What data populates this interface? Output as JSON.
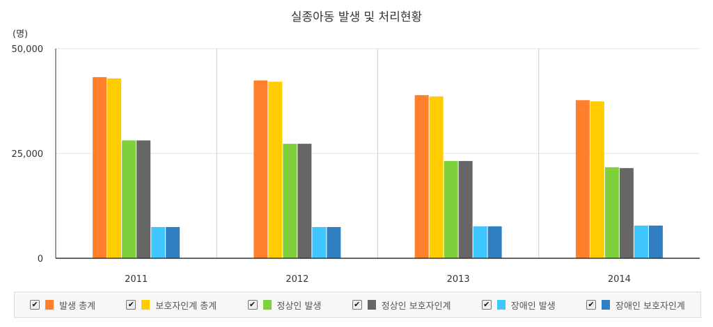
{
  "chart_data": {
    "type": "bar",
    "title": "실종아동 발생 및 처리현황",
    "ylabel": "(명)",
    "xlabel": "",
    "ylim": [
      0,
      50000
    ],
    "yticks": [
      "0",
      "25,000",
      "50,000"
    ],
    "ytick_values": [
      0,
      25000,
      50000
    ],
    "categories": [
      "2011",
      "2012",
      "2013",
      "2014"
    ],
    "legend_position": "bottom",
    "series": [
      {
        "name": "발생 총계",
        "color": "#ff7f2a",
        "values": [
          43200,
          42400,
          38900,
          37700
        ]
      },
      {
        "name": "보호자인계 총계",
        "color": "#ffcc00",
        "values": [
          42900,
          42100,
          38600,
          37400
        ]
      },
      {
        "name": "정상인 발생",
        "color": "#7ed13a",
        "values": [
          28100,
          27300,
          23200,
          21700
        ]
      },
      {
        "name": "정상인 보호자인계",
        "color": "#666666",
        "values": [
          28100,
          27300,
          23200,
          21500
        ]
      },
      {
        "name": "장애인 발생",
        "color": "#3fc6ff",
        "values": [
          7450,
          7450,
          7600,
          7800
        ]
      },
      {
        "name": "장애인 보호자인계",
        "color": "#2f7fc1",
        "values": [
          7450,
          7450,
          7600,
          7800
        ]
      }
    ]
  }
}
